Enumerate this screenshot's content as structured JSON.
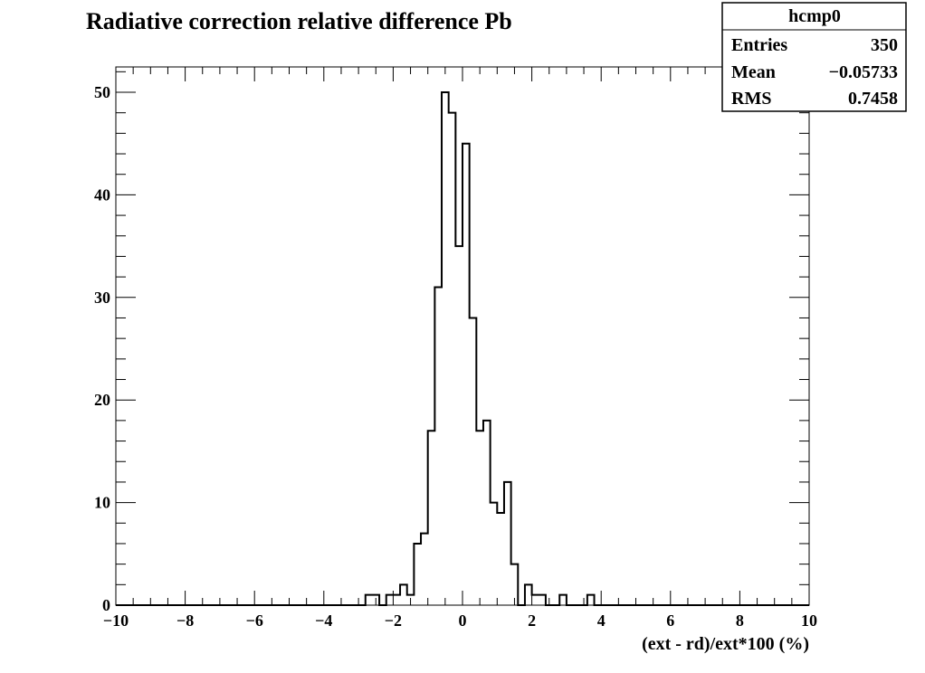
{
  "chart_data": {
    "type": "histogram",
    "title": "Radiative correction relative difference Pb",
    "xlabel": "(ext - rd)/ext*100 (%)",
    "ylabel": "",
    "xlim": [
      -10,
      10
    ],
    "ylim": [
      0,
      50
    ],
    "x_ticks": [
      "−10",
      "−8",
      "−6",
      "−4",
      "−2",
      "0",
      "2",
      "4",
      "6",
      "8",
      "10"
    ],
    "y_ticks": [
      "0",
      "10",
      "20",
      "30",
      "40",
      "50"
    ],
    "grid": false,
    "legend": "none",
    "bin_width": 0.2,
    "bins": [
      {
        "x0": -2.8,
        "count": 1
      },
      {
        "x0": -2.6,
        "count": 1
      },
      {
        "x0": -2.2,
        "count": 1
      },
      {
        "x0": -2.0,
        "count": 1
      },
      {
        "x0": -1.8,
        "count": 2
      },
      {
        "x0": -1.6,
        "count": 1
      },
      {
        "x0": -1.4,
        "count": 6
      },
      {
        "x0": -1.2,
        "count": 7
      },
      {
        "x0": -1.0,
        "count": 17
      },
      {
        "x0": -0.8,
        "count": 31
      },
      {
        "x0": -0.6,
        "count": 50
      },
      {
        "x0": -0.4,
        "count": 48
      },
      {
        "x0": -0.2,
        "count": 35
      },
      {
        "x0": 0.0,
        "count": 45
      },
      {
        "x0": 0.2,
        "count": 28
      },
      {
        "x0": 0.4,
        "count": 17
      },
      {
        "x0": 0.6,
        "count": 18
      },
      {
        "x0": 0.8,
        "count": 10
      },
      {
        "x0": 1.0,
        "count": 9
      },
      {
        "x0": 1.2,
        "count": 12
      },
      {
        "x0": 1.4,
        "count": 4
      },
      {
        "x0": 1.8,
        "count": 2
      },
      {
        "x0": 2.0,
        "count": 1
      },
      {
        "x0": 2.2,
        "count": 1
      },
      {
        "x0": 2.8,
        "count": 1
      },
      {
        "x0": 3.6,
        "count": 1
      }
    ],
    "line_color": "#000000"
  },
  "stats_box": {
    "name": "hcmp0",
    "rows": [
      {
        "label": "Entries",
        "value": "350"
      },
      {
        "label": "Mean",
        "value": "−0.05733"
      },
      {
        "label": "RMS",
        "value": "0.7458"
      }
    ]
  }
}
